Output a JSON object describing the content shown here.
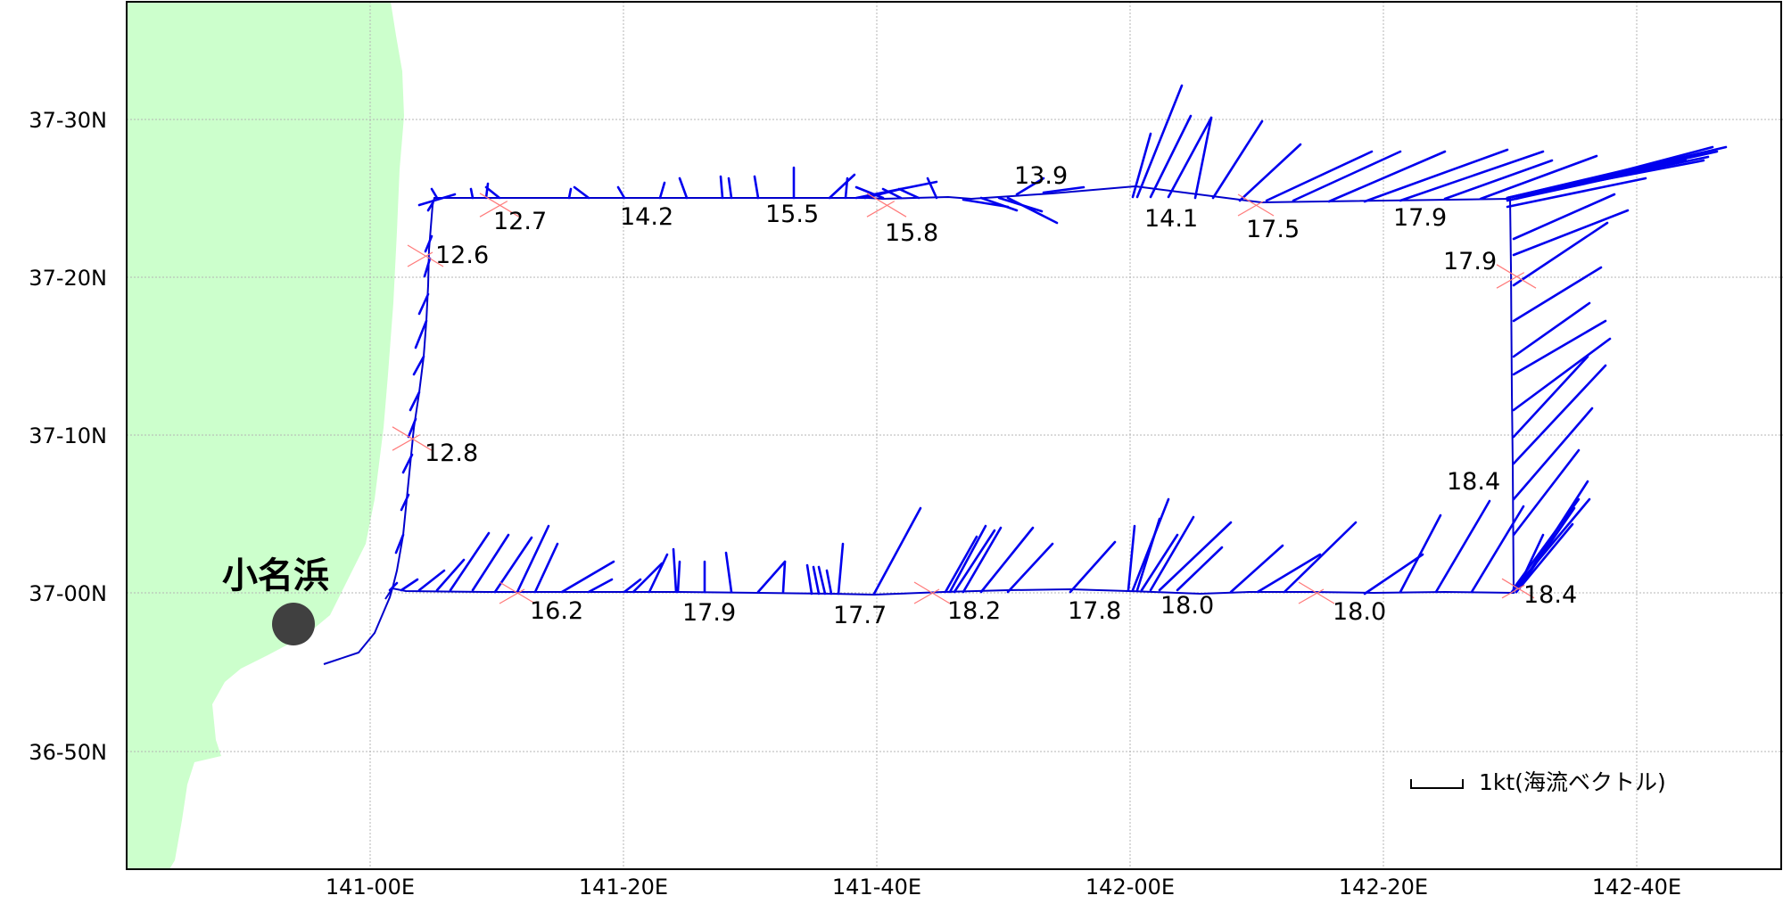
{
  "map": {
    "lat_labels": [
      "37-30N",
      "37-20N",
      "37-10N",
      "37-00N",
      "36-50N"
    ],
    "lon_labels": [
      "141-00E",
      "141-20E",
      "141-40E",
      "142-00E",
      "142-20E",
      "142-40E"
    ],
    "place_name": "小名浜",
    "scale_legend": "1kt(海流ベクトル)",
    "temperatures": [
      "12.7",
      "14.2",
      "15.5",
      "15.8",
      "13.9",
      "14.1",
      "17.5",
      "17.9",
      "12.6",
      "17.9",
      "12.8",
      "18.4",
      "16.2",
      "17.9",
      "17.7",
      "18.2",
      "17.8",
      "18.0",
      "18.0",
      "18.4"
    ],
    "colors": {
      "land": "#ccffcc",
      "vectors": "#0000ee",
      "track": "#0000cc",
      "markers": "#ff7a7a"
    }
  }
}
